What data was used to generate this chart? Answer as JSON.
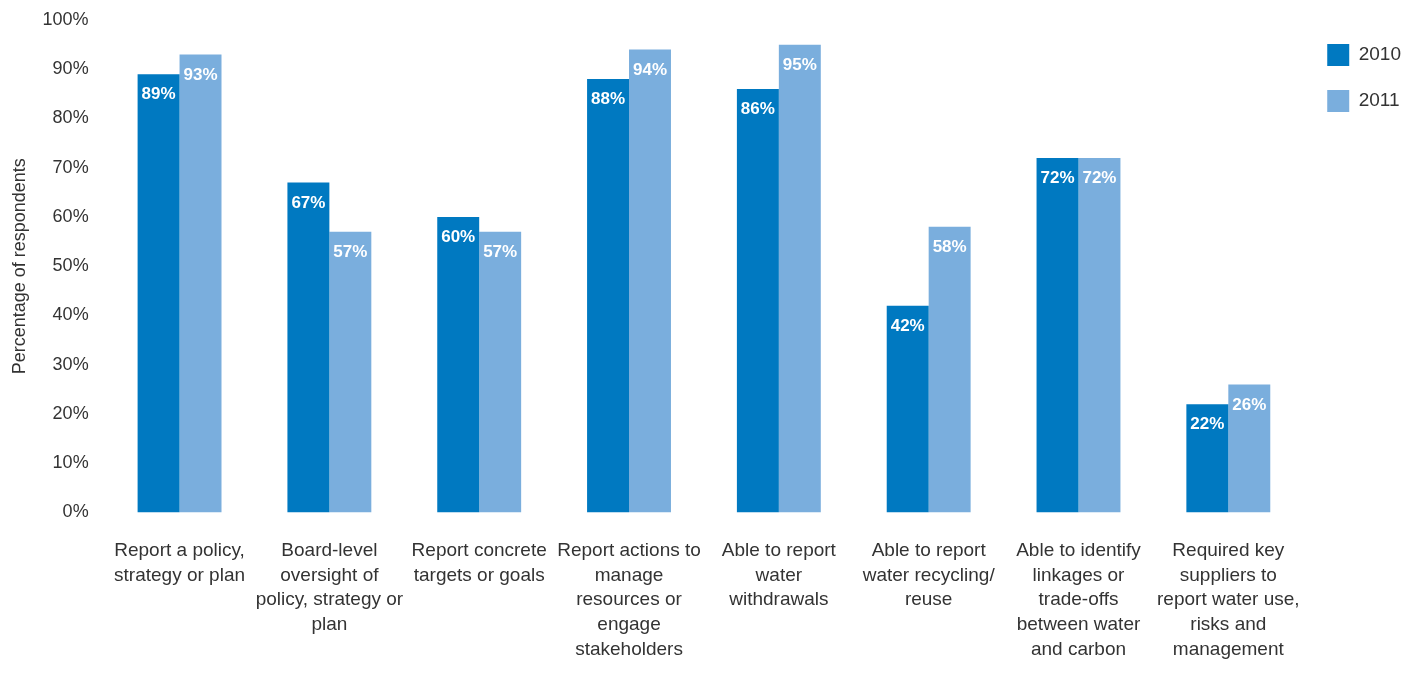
{
  "chart_data": {
    "type": "bar",
    "ylabel": "Percentage of respondents",
    "categories": [
      "Report a policy, strategy or plan",
      "Board-level oversight of policy, strategy or plan",
      "Report concrete targets or goals",
      "Report actions to manage resources or engage stakeholders",
      "Able to report water withdrawals",
      "Able to report water recycling/ reuse",
      "Able to identify linkages or trade-offs between water and carbon",
      "Required key suppliers to report water use, risks and management"
    ],
    "series": [
      {
        "name": "2010",
        "color": "#0079c1",
        "values": [
          89,
          67,
          60,
          88,
          86,
          42,
          72,
          22
        ],
        "value_labels": [
          "89%",
          "67%",
          "60%",
          "88%",
          "86%",
          "42%",
          "72%",
          "22%"
        ]
      },
      {
        "name": "2011",
        "color": "#7aaedd",
        "values": [
          93,
          57,
          57,
          94,
          95,
          58,
          72,
          26
        ],
        "value_labels": [
          "93%",
          "57%",
          "57%",
          "94%",
          "95%",
          "58%",
          "72%",
          "26%"
        ]
      }
    ],
    "ylim": [
      0,
      100
    ],
    "yticks": [
      {
        "value": 0,
        "label": "0%"
      },
      {
        "value": 10,
        "label": "10%"
      },
      {
        "value": 20,
        "label": "20%"
      },
      {
        "value": 30,
        "label": "30%"
      },
      {
        "value": 40,
        "label": "40%"
      },
      {
        "value": 50,
        "label": "50%"
      },
      {
        "value": 60,
        "label": "60%"
      },
      {
        "value": 70,
        "label": "70%"
      },
      {
        "value": 80,
        "label": "80%"
      },
      {
        "value": 90,
        "label": "90%"
      },
      {
        "value": 100,
        "label": "100%"
      }
    ],
    "grid": false,
    "legend": "top right"
  }
}
